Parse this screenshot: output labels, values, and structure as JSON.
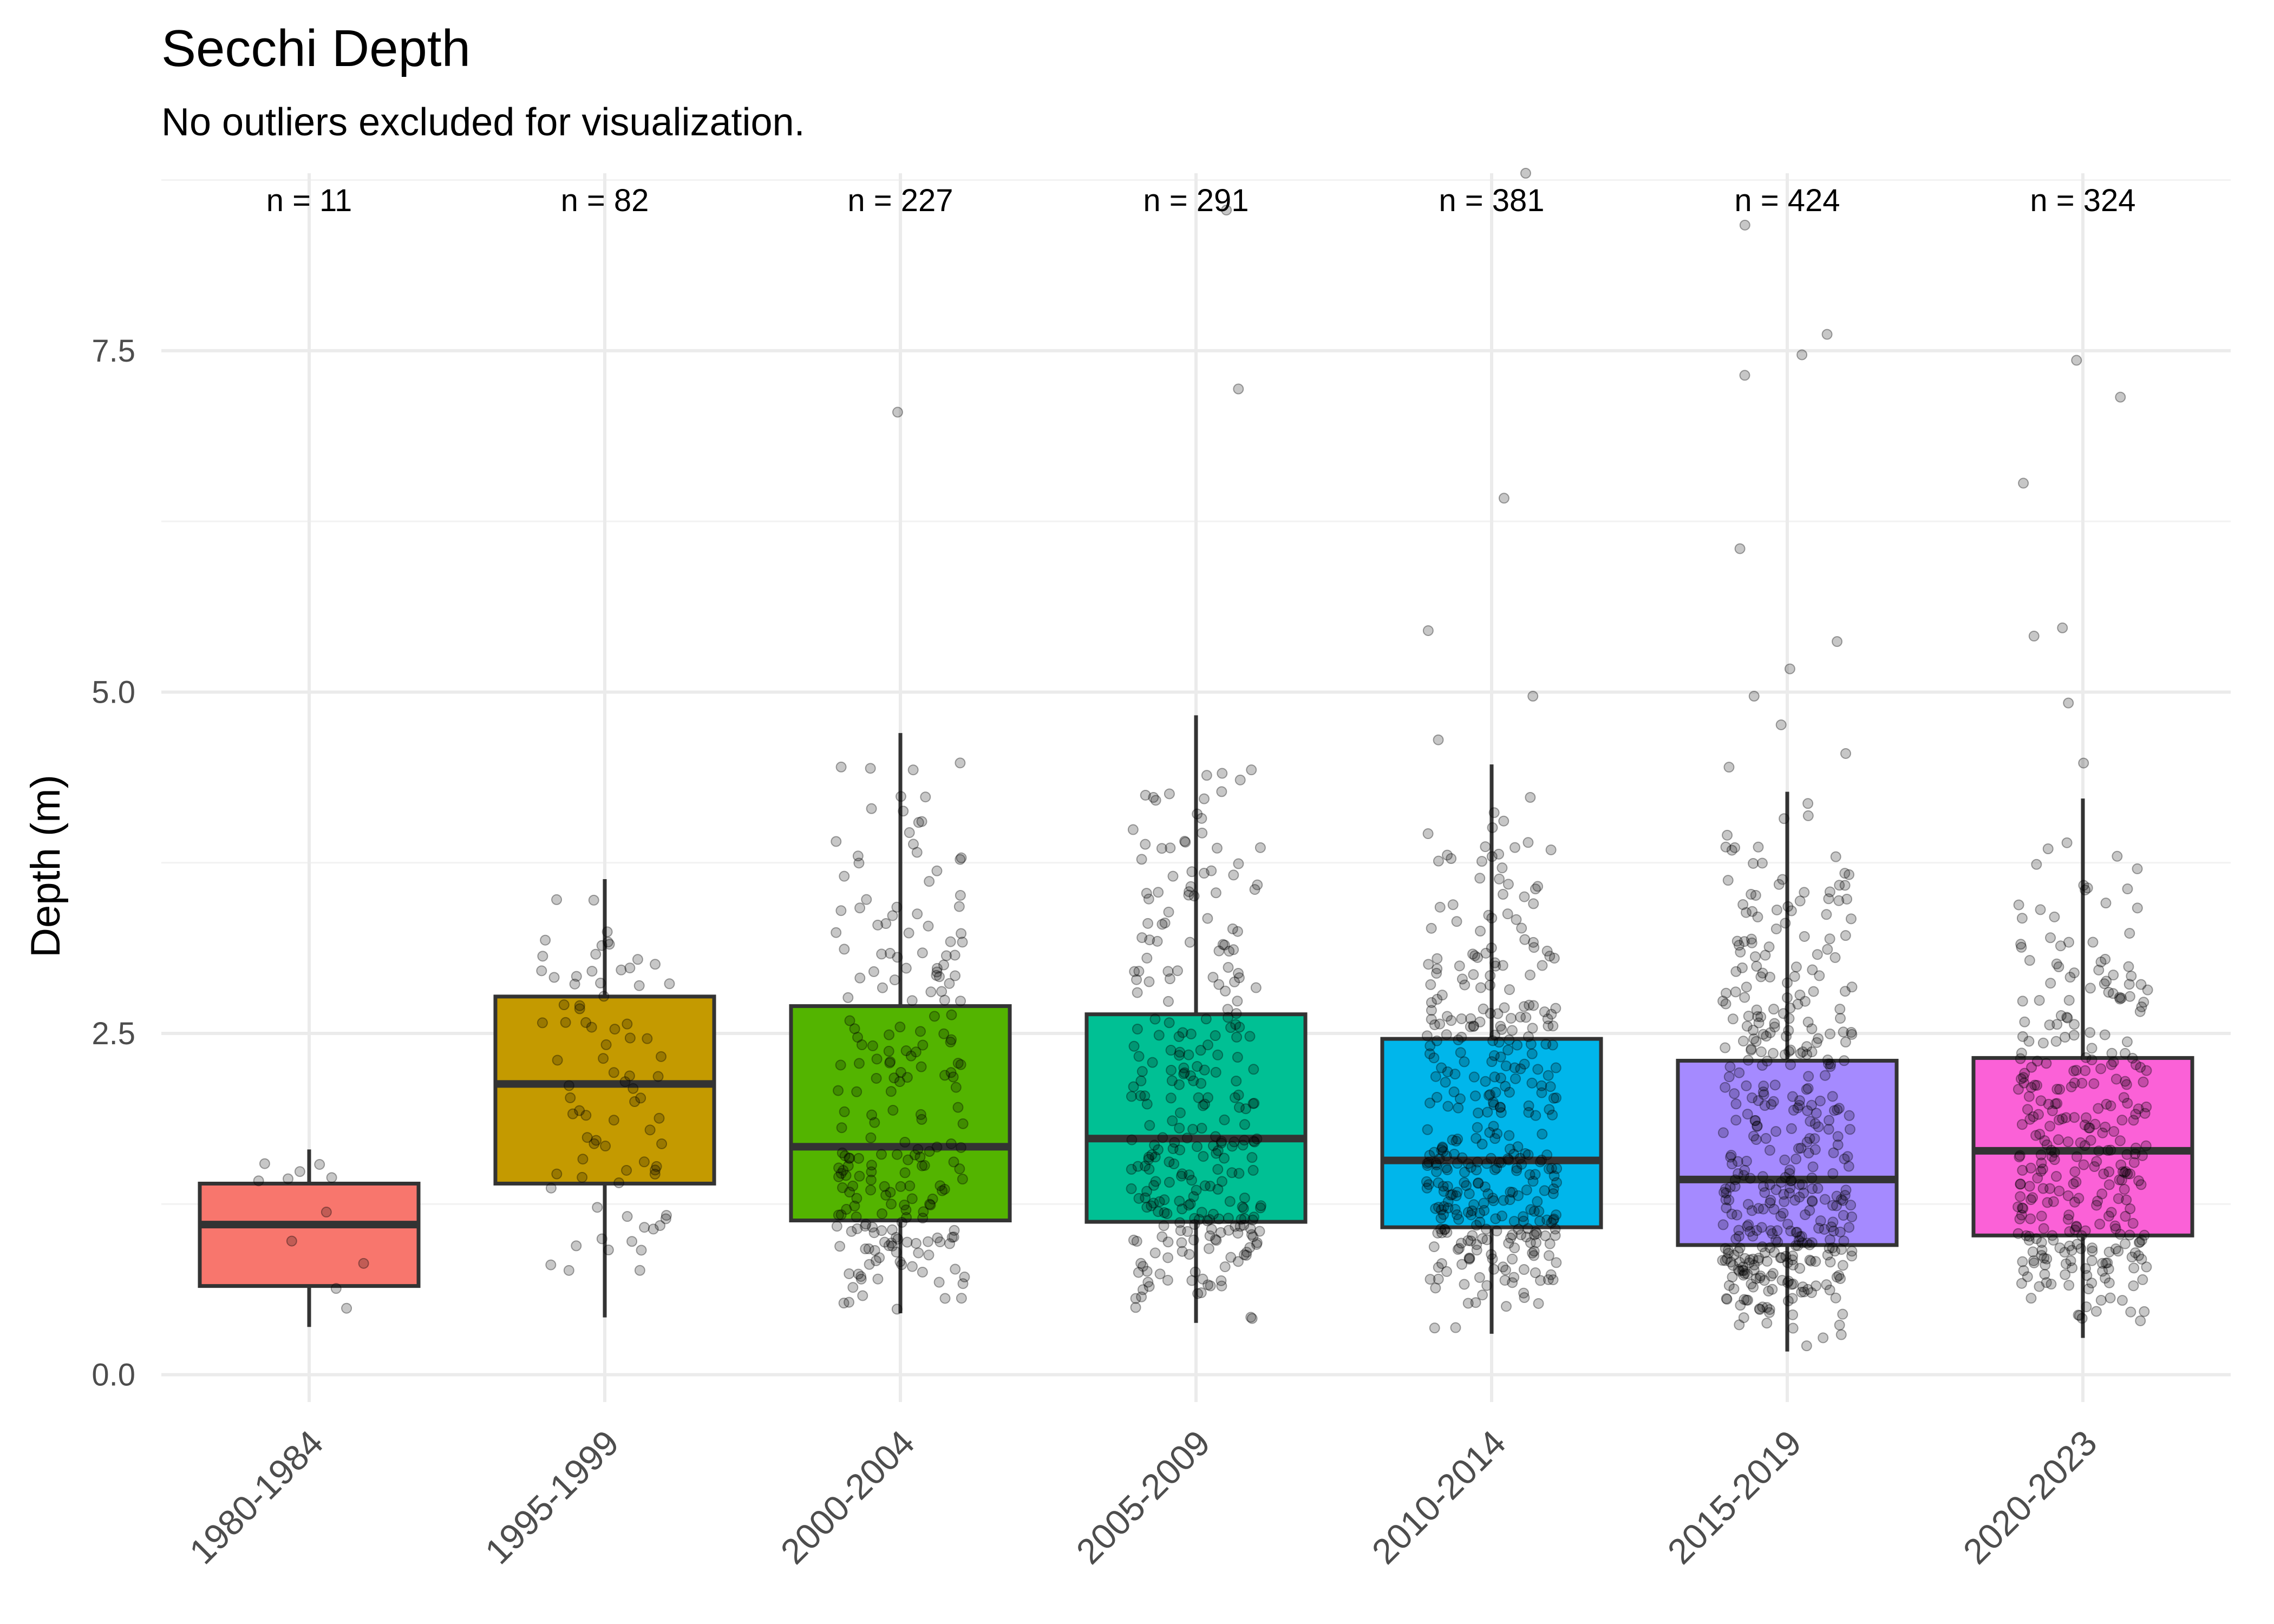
{
  "chart_data": {
    "type": "box",
    "title": "Secchi Depth",
    "subtitle": "No outliers excluded for visualization.",
    "xlabel": "",
    "ylabel": "Depth (m)",
    "ylim": [
      -0.2,
      8.8
    ],
    "yticks": [
      0.0,
      2.5,
      5.0,
      7.5
    ],
    "ytick_labels": [
      "0.0",
      "2.5",
      "5.0",
      "7.5"
    ],
    "grid": true,
    "legend": "none",
    "categories": [
      "1980-1984",
      "1995-1999",
      "2000-2004",
      "2005-2009",
      "2010-2014",
      "2015-2019",
      "2020-2023"
    ],
    "n_labels": [
      "n = 11",
      "n = 82",
      "n = 227",
      "n = 291",
      "n = 381",
      "n = 424",
      "n = 324"
    ],
    "n": [
      11,
      82,
      227,
      291,
      381,
      424,
      324
    ],
    "boxes": [
      {
        "q1": 0.65,
        "median": 1.1,
        "q3": 1.4,
        "whisker_low": 0.35,
        "whisker_high": 1.65,
        "color": "#F8766D",
        "outliers": []
      },
      {
        "q1": 1.4,
        "median": 2.13,
        "q3": 2.77,
        "whisker_low": 0.42,
        "whisker_high": 3.63,
        "color": "#C49A00",
        "outliers": []
      },
      {
        "q1": 1.13,
        "median": 1.67,
        "q3": 2.7,
        "whisker_low": 0.45,
        "whisker_high": 4.7,
        "color": "#53B400",
        "outliers": [
          7.05
        ]
      },
      {
        "q1": 1.12,
        "median": 1.73,
        "q3": 2.64,
        "whisker_low": 0.38,
        "whisker_high": 4.83,
        "color": "#00C094",
        "outliers": [
          8.53,
          7.22
        ]
      },
      {
        "q1": 1.08,
        "median": 1.57,
        "q3": 2.46,
        "whisker_low": 0.3,
        "whisker_high": 4.47,
        "color": "#00B6EB",
        "outliers": [
          8.8,
          6.42,
          5.45,
          4.97,
          4.65
        ]
      },
      {
        "q1": 0.95,
        "median": 1.43,
        "q3": 2.3,
        "whisker_low": 0.17,
        "whisker_high": 4.27,
        "color": "#A58AFF",
        "outliers": [
          8.42,
          7.62,
          7.47,
          7.32,
          6.05,
          5.37,
          5.17,
          4.97,
          4.76,
          4.55,
          4.45
        ]
      },
      {
        "q1": 1.02,
        "median": 1.64,
        "q3": 2.32,
        "whisker_low": 0.27,
        "whisker_high": 4.22,
        "color": "#FB61D7",
        "outliers": [
          7.43,
          7.16,
          6.53,
          5.47,
          5.41,
          4.92,
          4.48
        ]
      }
    ]
  }
}
